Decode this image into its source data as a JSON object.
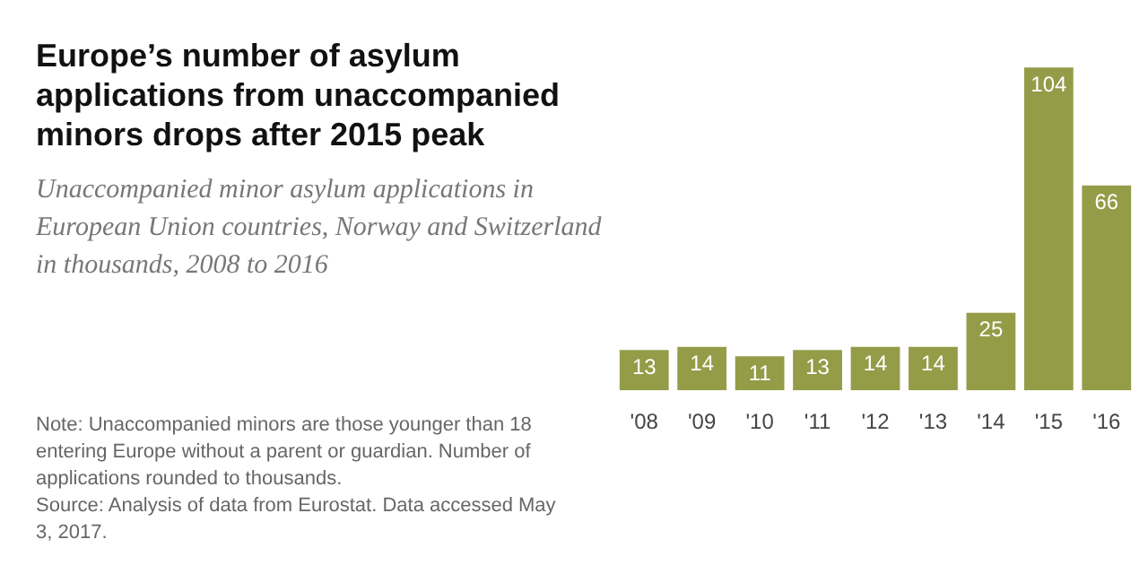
{
  "chart_data": {
    "type": "bar",
    "title": "Europe’s number of asylum applications from unaccompanied minors drops after 2015 peak",
    "subtitle": "Unaccompanied minor asylum applications in European Union countries, Norway and Switzerland in thousands, 2008 to 2016",
    "categories": [
      "'08",
      "'09",
      "'10",
      "'11",
      "'12",
      "'13",
      "'14",
      "'15",
      "'16"
    ],
    "values": [
      13,
      14,
      11,
      13,
      14,
      14,
      25,
      104,
      66
    ],
    "color": "#949c48",
    "data_labels": true,
    "grid": false,
    "legend": false,
    "annotations": [
      "Note: Unaccompanied minors are those younger than 18 entering Europe without a parent or guardian. Number of applications rounded to thousands.",
      "Source: Analysis of data from Eurostat. Data accessed May 3, 2017."
    ]
  }
}
